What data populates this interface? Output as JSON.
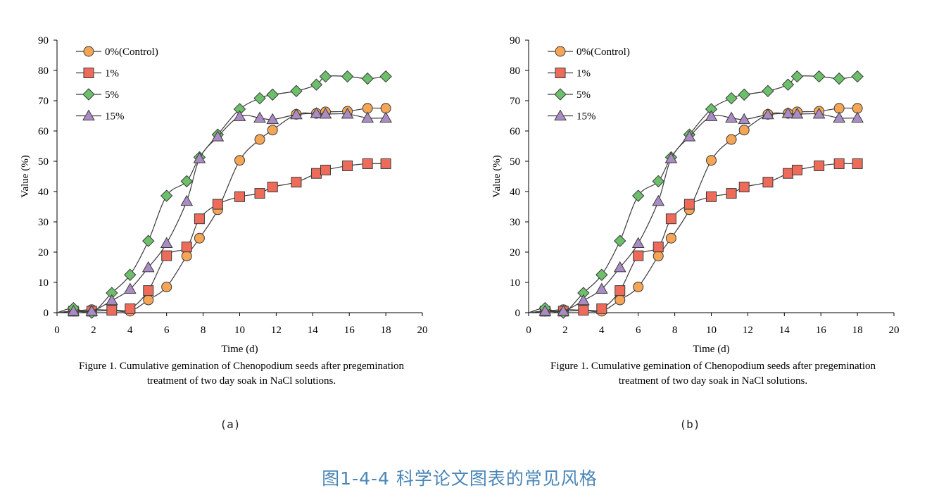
{
  "sub_labels": [
    "(a)",
    "(b)"
  ],
  "figure_caption": "图1-4-4  科学论文图表的常见风格",
  "chart_data": [
    {
      "type": "line",
      "panel_label": "(a)",
      "title": "",
      "caption_lines": [
        "Figure 1. Cumulative gemination of Chenopodium seeds after pregemination",
        "treatment of two day soak in NaCl solutions."
      ],
      "xlabel": "Time (d)",
      "ylabel": "Value (%)",
      "xlim": [
        0,
        20
      ],
      "ylim": [
        0,
        90
      ],
      "xticks": [
        0,
        2,
        4,
        6,
        8,
        10,
        12,
        14,
        16,
        18,
        20
      ],
      "yticks": [
        0,
        10,
        20,
        30,
        40,
        50,
        60,
        70,
        80,
        90
      ],
      "grid": false,
      "legend_position": "top-left",
      "series": [
        {
          "name": "0%(Control)",
          "marker": "circle",
          "color": "#f4a555",
          "x": [
            0,
            0.9,
            1.9,
            3.0,
            4.0,
            5.0,
            6.0,
            7.1,
            7.8,
            8.8,
            10.0,
            11.1,
            11.8,
            13.1,
            14.2,
            14.7,
            15.9,
            17.0,
            18.0
          ],
          "y": [
            0,
            0.5,
            1.0,
            0.8,
            0.5,
            4.2,
            8.5,
            18.7,
            24.6,
            34.0,
            50.3,
            57.2,
            60.3,
            65.5,
            65.8,
            66.3,
            66.5,
            67.5,
            67.5
          ]
        },
        {
          "name": "1%",
          "marker": "square",
          "color": "#ee6b5a",
          "x": [
            0,
            0.9,
            1.9,
            3.0,
            4.0,
            5.0,
            6.0,
            7.1,
            7.8,
            8.8,
            10.0,
            11.1,
            11.8,
            13.1,
            14.2,
            14.7,
            15.9,
            17.0,
            18.0
          ],
          "y": [
            0,
            0.5,
            0.5,
            0.8,
            1.3,
            7.3,
            18.8,
            21.7,
            31.0,
            35.8,
            38.3,
            39.4,
            41.5,
            43.1,
            46.0,
            47.1,
            48.5,
            49.2,
            49.2
          ]
        },
        {
          "name": "5%",
          "marker": "diamond",
          "color": "#6cc06a",
          "x": [
            0,
            0.9,
            1.9,
            3.0,
            4.0,
            5.0,
            6.0,
            7.1,
            7.8,
            8.8,
            10.0,
            11.1,
            11.8,
            13.1,
            14.2,
            14.7,
            15.9,
            17.0,
            18.0
          ],
          "y": [
            0,
            1.5,
            0,
            6.5,
            12.5,
            23.7,
            38.6,
            43.4,
            51.3,
            58.8,
            67.2,
            70.8,
            72.0,
            73.2,
            75.3,
            78.0,
            78.0,
            77.3,
            78.0
          ]
        },
        {
          "name": "15%",
          "marker": "triangle",
          "color": "#a98cc3",
          "x": [
            0,
            0.9,
            1.9,
            3.0,
            4.0,
            5.0,
            6.0,
            7.1,
            7.8,
            8.8,
            10.0,
            11.1,
            11.8,
            13.1,
            14.2,
            14.7,
            15.9,
            17.0,
            18.0
          ],
          "y": [
            0,
            0.5,
            0.5,
            4.0,
            7.8,
            14.9,
            22.9,
            36.8,
            50.9,
            58.1,
            64.8,
            64.3,
            63.8,
            65.4,
            65.8,
            65.6,
            65.6,
            64.3,
            64.3
          ]
        }
      ]
    },
    {
      "type": "line",
      "panel_label": "(b)",
      "title": "",
      "caption_lines": [
        "Figure 1. Cumulative gemination of Chenopodium seeds after pregemination",
        "treatment of two day soak in NaCl solutions."
      ],
      "xlabel": "Time (d)",
      "ylabel": "Value (%)",
      "xlim": [
        0,
        20
      ],
      "ylim": [
        0,
        90
      ],
      "xticks": [
        0,
        2,
        4,
        6,
        8,
        10,
        12,
        14,
        16,
        18,
        20
      ],
      "yticks": [
        0,
        10,
        20,
        30,
        40,
        50,
        60,
        70,
        80,
        90
      ],
      "grid": false,
      "legend_position": "top-left",
      "series": [
        {
          "name": "0%(Control)",
          "marker": "circle",
          "color": "#f4a555",
          "x": [
            0,
            0.9,
            1.9,
            3.0,
            4.0,
            5.0,
            6.0,
            7.1,
            7.8,
            8.8,
            10.0,
            11.1,
            11.8,
            13.1,
            14.2,
            14.7,
            15.9,
            17.0,
            18.0
          ],
          "y": [
            0,
            0.5,
            1.0,
            0.8,
            0.5,
            4.2,
            8.5,
            18.7,
            24.6,
            34.0,
            50.3,
            57.2,
            60.3,
            65.5,
            65.8,
            66.3,
            66.5,
            67.5,
            67.5
          ]
        },
        {
          "name": "1%",
          "marker": "square",
          "color": "#ee6b5a",
          "x": [
            0,
            0.9,
            1.9,
            3.0,
            4.0,
            5.0,
            6.0,
            7.1,
            7.8,
            8.8,
            10.0,
            11.1,
            11.8,
            13.1,
            14.2,
            14.7,
            15.9,
            17.0,
            18.0
          ],
          "y": [
            0,
            0.5,
            0.5,
            0.8,
            1.3,
            7.3,
            18.8,
            21.7,
            31.0,
            35.8,
            38.3,
            39.4,
            41.5,
            43.1,
            46.0,
            47.1,
            48.5,
            49.2,
            49.2
          ]
        },
        {
          "name": "5%",
          "marker": "diamond",
          "color": "#6cc06a",
          "x": [
            0,
            0.9,
            1.9,
            3.0,
            4.0,
            5.0,
            6.0,
            7.1,
            7.8,
            8.8,
            10.0,
            11.1,
            11.8,
            13.1,
            14.2,
            14.7,
            15.9,
            17.0,
            18.0
          ],
          "y": [
            0,
            1.5,
            0,
            6.5,
            12.5,
            23.7,
            38.6,
            43.4,
            51.3,
            58.8,
            67.2,
            70.8,
            72.0,
            73.2,
            75.3,
            78.0,
            78.0,
            77.3,
            78.0
          ]
        },
        {
          "name": "15%",
          "marker": "triangle",
          "color": "#a98cc3",
          "x": [
            0,
            0.9,
            1.9,
            3.0,
            4.0,
            5.0,
            6.0,
            7.1,
            7.8,
            8.8,
            10.0,
            11.1,
            11.8,
            13.1,
            14.2,
            14.7,
            15.9,
            17.0,
            18.0
          ],
          "y": [
            0,
            0.5,
            0.5,
            4.0,
            7.8,
            14.9,
            22.9,
            36.8,
            50.9,
            58.1,
            64.8,
            64.3,
            63.8,
            65.4,
            65.8,
            65.6,
            65.6,
            64.3,
            64.3
          ]
        }
      ]
    }
  ]
}
